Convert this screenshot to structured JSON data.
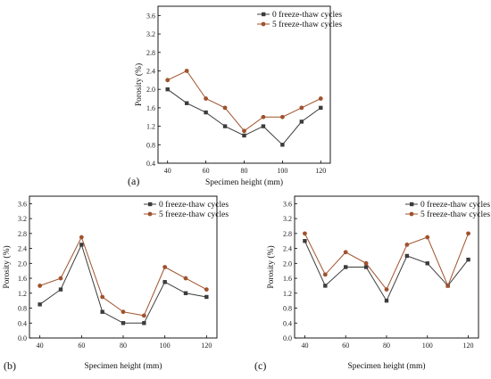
{
  "colors": {
    "cycles_0": "#3c3c3c",
    "cycles_5": "#a0522d",
    "axis": "#000000"
  },
  "chart_data": [
    {
      "type": "line",
      "panel_label": "(a)",
      "xlabel": "Specimen height (mm)",
      "ylabel": "Porosity (%)",
      "xlim": [
        35,
        125
      ],
      "ylim": [
        0.4,
        3.8
      ],
      "x_ticks": [
        "40",
        "60",
        "80",
        "100",
        "120"
      ],
      "y_ticks": [
        "0.4",
        "0.8",
        "1.2",
        "1.6",
        "2.0",
        "2.4",
        "2.8",
        "3.2",
        "3.6"
      ],
      "legend_position": "top-right",
      "x": [
        40,
        50,
        60,
        70,
        80,
        90,
        100,
        110,
        120
      ],
      "series": [
        {
          "name": "0 freeze-thaw cycles",
          "marker": "square",
          "values": [
            2.0,
            1.7,
            1.5,
            1.2,
            1.0,
            1.2,
            0.8,
            1.3,
            1.6
          ]
        },
        {
          "name": "5 freeze-thaw cycles",
          "marker": "circle",
          "values": [
            2.2,
            2.4,
            1.8,
            1.6,
            1.1,
            1.4,
            1.4,
            1.6,
            1.8
          ]
        }
      ]
    },
    {
      "type": "line",
      "panel_label": "(b)",
      "xlabel": "Specimen height (mm)",
      "ylabel": "Porosity (%)",
      "xlim": [
        35,
        125
      ],
      "ylim": [
        0.0,
        3.8
      ],
      "x_ticks": [
        "40",
        "60",
        "80",
        "100",
        "120"
      ],
      "y_ticks": [
        "0.0",
        "0.4",
        "0.8",
        "1.2",
        "1.6",
        "2.0",
        "2.4",
        "2.8",
        "3.2",
        "3.6"
      ],
      "legend_position": "top-right",
      "x": [
        40,
        50,
        60,
        70,
        80,
        90,
        100,
        110,
        120
      ],
      "series": [
        {
          "name": "0 freeze-thaw cycles",
          "marker": "square",
          "values": [
            0.9,
            1.3,
            2.5,
            0.7,
            0.4,
            0.4,
            1.5,
            1.2,
            1.1
          ]
        },
        {
          "name": "5 freeze-thaw cycles",
          "marker": "circle",
          "values": [
            1.4,
            1.6,
            2.7,
            1.1,
            0.7,
            0.6,
            1.9,
            1.6,
            1.3
          ]
        }
      ]
    },
    {
      "type": "line",
      "panel_label": "(c)",
      "xlabel": "Specimen height (mm)",
      "ylabel": "Porosity (%)",
      "xlim": [
        35,
        125
      ],
      "ylim": [
        0.0,
        3.8
      ],
      "x_ticks": [
        "40",
        "60",
        "80",
        "100",
        "120"
      ],
      "y_ticks": [
        "0.0",
        "0.4",
        "0.8",
        "1.2",
        "1.6",
        "2.0",
        "2.4",
        "2.8",
        "3.2",
        "3.6"
      ],
      "legend_position": "top-right",
      "x": [
        40,
        50,
        60,
        70,
        80,
        90,
        100,
        110,
        120
      ],
      "series": [
        {
          "name": "0 freeze-thaw cycles",
          "marker": "square",
          "values": [
            2.6,
            1.4,
            1.9,
            1.9,
            1.0,
            2.2,
            2.0,
            1.4,
            2.1
          ]
        },
        {
          "name": "5 freeze-thaw cycles",
          "marker": "circle",
          "values": [
            2.8,
            1.7,
            2.3,
            2.0,
            1.3,
            2.5,
            2.7,
            1.4,
            2.8
          ]
        }
      ]
    }
  ]
}
